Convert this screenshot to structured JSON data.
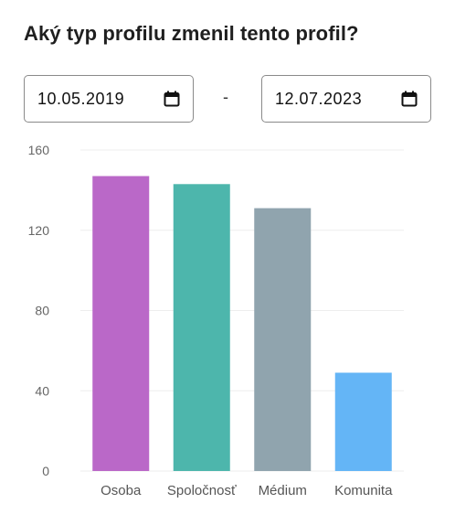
{
  "title": "Aký typ profilu zmenil tento profil?",
  "date_range": {
    "from": "10.05.2019",
    "separator": "-",
    "to": "12.07.2023"
  },
  "icons": {
    "date_picker": "calendar-icon"
  },
  "chart_data": {
    "type": "bar",
    "categories": [
      "Osoba",
      "Spoločnosť",
      "Médium",
      "Komunita"
    ],
    "values": [
      147,
      143,
      131,
      49
    ],
    "colors": [
      "#ba68c8",
      "#4db6ac",
      "#90a4ae",
      "#64b5f6"
    ],
    "yticks": [
      "0",
      "40",
      "80",
      "120",
      "160"
    ],
    "ylim": [
      0,
      160
    ],
    "grid": true
  }
}
